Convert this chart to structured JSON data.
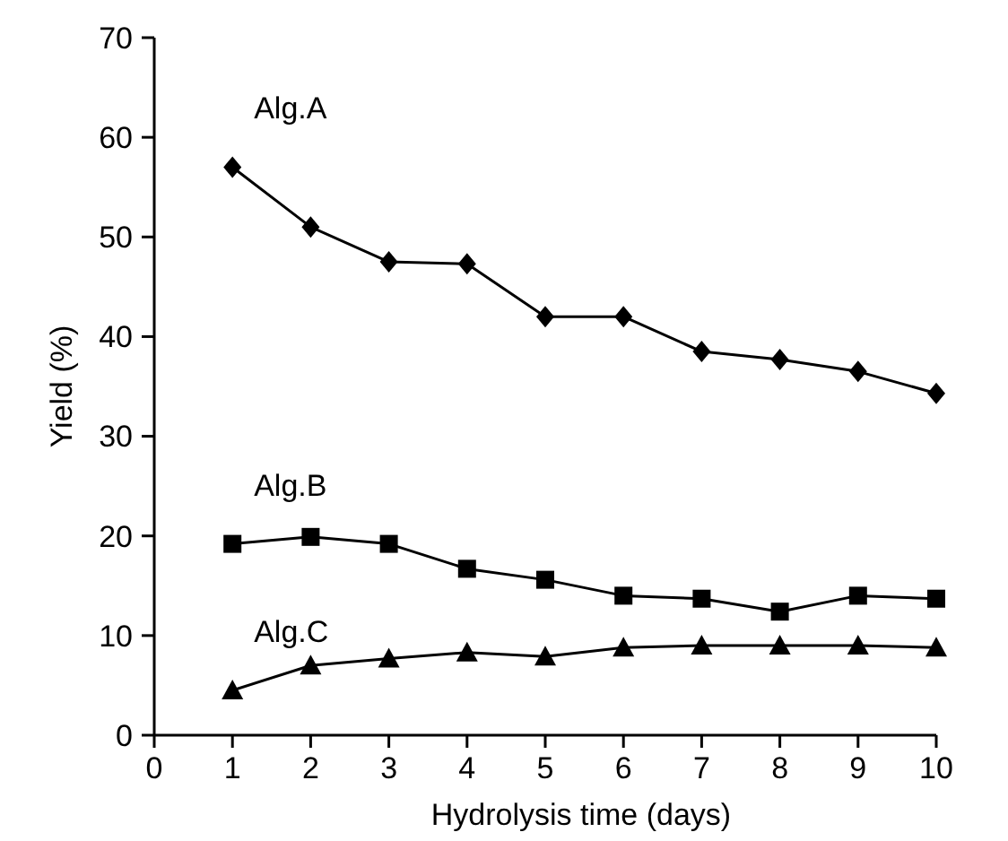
{
  "chart_data": {
    "type": "line",
    "xlabel": "Hydrolysis time (days)",
    "ylabel": "Yield (%)",
    "x": [
      1,
      2,
      3,
      4,
      5,
      6,
      7,
      8,
      9,
      10
    ],
    "xlim": [
      0,
      10
    ],
    "xticks": [
      0,
      1,
      2,
      3,
      4,
      5,
      6,
      7,
      8,
      9,
      10
    ],
    "ylim": [
      0,
      70
    ],
    "yticks": [
      0,
      10,
      20,
      30,
      40,
      50,
      60,
      70
    ],
    "grid": false,
    "line_style": "solid",
    "series": [
      {
        "name": "Alg.A",
        "color": "#000000",
        "marker": "diamond",
        "values": [
          57,
          51,
          47.5,
          47.3,
          42,
          42,
          38.5,
          37.7,
          36.5,
          34.3
        ]
      },
      {
        "name": "Alg.B",
        "color": "#000000",
        "marker": "square",
        "values": [
          19.2,
          19.9,
          19.2,
          16.7,
          15.6,
          14,
          13.7,
          12.4,
          14,
          13.7
        ]
      },
      {
        "name": "Alg.C",
        "color": "#000000",
        "marker": "triangle",
        "values": [
          4.5,
          7,
          7.7,
          8.3,
          7.9,
          8.8,
          9,
          9,
          9,
          8.8
        ]
      }
    ]
  }
}
